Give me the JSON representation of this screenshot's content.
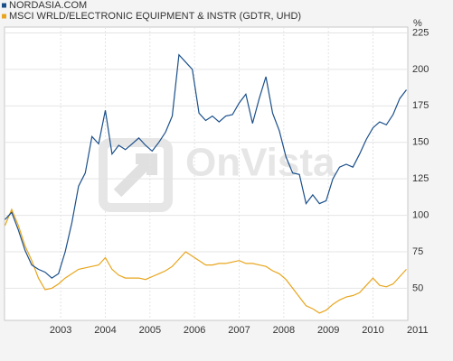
{
  "chart_data": {
    "type": "line",
    "watermark": "OnVista",
    "y_axis_label": "%",
    "x": [
      2001.75,
      2001.9,
      2002.05,
      2002.2,
      2002.35,
      2002.5,
      2002.65,
      2002.8,
      2002.95,
      2003.1,
      2003.25,
      2003.4,
      2003.55,
      2003.7,
      2003.85,
      2004,
      2004.15,
      2004.3,
      2004.45,
      2004.6,
      2004.75,
      2004.9,
      2005.05,
      2005.2,
      2005.35,
      2005.5,
      2005.65,
      2005.8,
      2005.95,
      2006.1,
      2006.25,
      2006.4,
      2006.55,
      2006.7,
      2006.85,
      2007,
      2007.15,
      2007.3,
      2007.45,
      2007.6,
      2007.75,
      2007.9,
      2008.05,
      2008.2,
      2008.35,
      2008.5,
      2008.65,
      2008.8,
      2008.95,
      2009.1,
      2009.25,
      2009.4,
      2009.55,
      2009.7,
      2009.85,
      2010,
      2010.15,
      2010.3,
      2010.45,
      2010.6,
      2010.75
    ],
    "series": [
      {
        "name": "NORDASIA.COM",
        "color": "#1a4f8a",
        "values": [
          97,
          102,
          90,
          76,
          66,
          63,
          61,
          57,
          60,
          75,
          95,
          120,
          129,
          154,
          149,
          172,
          142,
          148,
          145,
          149,
          153,
          148,
          144,
          150,
          157,
          168,
          210,
          205,
          200,
          170,
          165,
          168,
          164,
          168,
          169,
          177,
          183,
          163,
          180,
          195,
          170,
          158,
          140,
          129,
          128,
          108,
          114,
          108,
          110,
          125,
          133,
          135,
          133,
          142,
          152,
          160,
          164,
          162,
          169,
          180,
          186
        ]
      },
      {
        "name": "MSCI WRLD/ELECTRONIC EQUIPMENT & INSTR (GDTR, UHD)",
        "color": "#e8a51c",
        "values": [
          93,
          104,
          93,
          79,
          69,
          57,
          49,
          50,
          53,
          57,
          60,
          63,
          64,
          65,
          66,
          71,
          63,
          59,
          57,
          57,
          57,
          56,
          58,
          60,
          62,
          65,
          70,
          75,
          72,
          69,
          66,
          66,
          67,
          67,
          68,
          69,
          67,
          67,
          66,
          65,
          62,
          60,
          56,
          50,
          44,
          38,
          36,
          33,
          35,
          39,
          42,
          44,
          45,
          47,
          52,
          57,
          52,
          51,
          53,
          58,
          63
        ]
      }
    ],
    "xlim": [
      2001.74,
      2010.78
    ],
    "xticks": [
      2003,
      2004,
      2005,
      2006,
      2007,
      2008,
      2009,
      2010,
      2011
    ],
    "ylim": [
      28,
      229
    ],
    "yticks": [
      50,
      75,
      100,
      125,
      150,
      175,
      200,
      225
    ],
    "grid": true
  }
}
